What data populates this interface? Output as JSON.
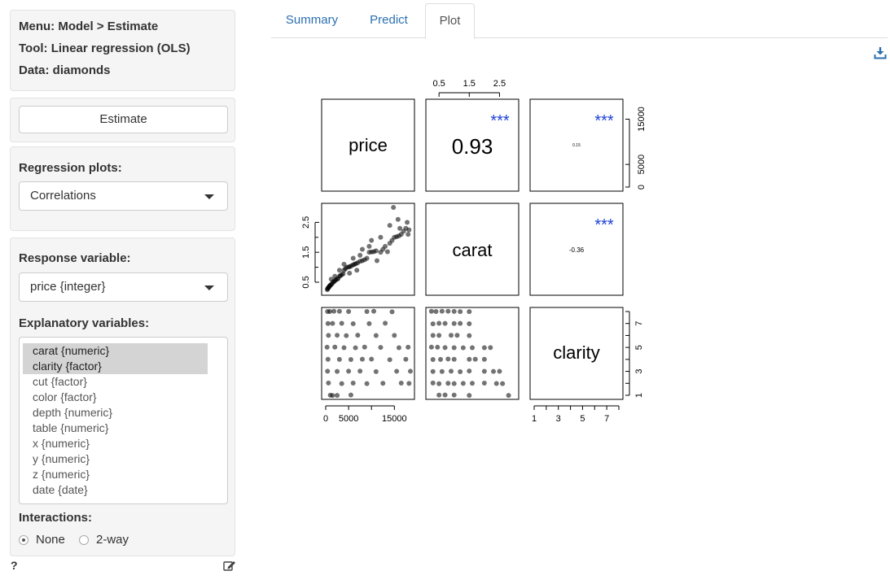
{
  "info": {
    "menu": "Menu: Model > Estimate",
    "tool": "Tool: Linear regression (OLS)",
    "data": "Data: diamonds"
  },
  "estimate_button": "Estimate",
  "regression_plots": {
    "label": "Regression plots:",
    "value": "Correlations"
  },
  "response_variable": {
    "label": "Response variable:",
    "value": "price {integer}"
  },
  "explanatory_variables": {
    "label": "Explanatory variables:",
    "options": [
      {
        "label": "carat {numeric}",
        "selected": true
      },
      {
        "label": "clarity {factor}",
        "selected": true
      },
      {
        "label": "cut {factor}",
        "selected": false
      },
      {
        "label": "color {factor}",
        "selected": false
      },
      {
        "label": "depth {numeric}",
        "selected": false
      },
      {
        "label": "table {numeric}",
        "selected": false
      },
      {
        "label": "x {numeric}",
        "selected": false
      },
      {
        "label": "y {numeric}",
        "selected": false
      },
      {
        "label": "z {numeric}",
        "selected": false
      },
      {
        "label": "date {date}",
        "selected": false
      }
    ]
  },
  "interactions": {
    "label": "Interactions:",
    "options": [
      {
        "label": "None",
        "checked": true
      },
      {
        "label": "2-way",
        "checked": false
      }
    ]
  },
  "footer": {
    "help": "?"
  },
  "tabs": [
    {
      "label": "Summary",
      "active": false
    },
    {
      "label": "Predict",
      "active": false
    },
    {
      "label": "Plot",
      "active": true
    }
  ],
  "chart_data": {
    "type": "scatter",
    "title": "",
    "variables": [
      "price",
      "carat",
      "clarity"
    ],
    "correlations": [
      {
        "pair": [
          "price",
          "carat"
        ],
        "r": "0.93",
        "stars": "***"
      },
      {
        "pair": [
          "price",
          "clarity"
        ],
        "r": "0.15",
        "stars": "***"
      },
      {
        "pair": [
          "carat",
          "clarity"
        ],
        "r": "-0.36",
        "stars": "***"
      }
    ],
    "axis_ticks": {
      "price": [
        "0",
        "5000",
        "15000"
      ],
      "carat": [
        "0.5",
        "1.5",
        "2.5"
      ],
      "clarity": [
        "1",
        "3",
        "5",
        "7"
      ]
    },
    "ranges": {
      "price": [
        0,
        18500
      ],
      "carat": [
        0.2,
        3.0
      ],
      "clarity": [
        1,
        8
      ]
    },
    "points": {
      "price_carat": [
        [
          350,
          0.25
        ],
        [
          420,
          0.28
        ],
        [
          500,
          0.3
        ],
        [
          600,
          0.32
        ],
        [
          700,
          0.34
        ],
        [
          800,
          0.36
        ],
        [
          900,
          0.38
        ],
        [
          1000,
          0.4
        ],
        [
          1200,
          0.42
        ],
        [
          1400,
          0.45
        ],
        [
          1600,
          0.5
        ],
        [
          1800,
          0.52
        ],
        [
          2000,
          0.55
        ],
        [
          2200,
          0.58
        ],
        [
          2500,
          0.6
        ],
        [
          2700,
          0.62
        ],
        [
          3000,
          0.7
        ],
        [
          3200,
          0.72
        ],
        [
          3500,
          0.75
        ],
        [
          3800,
          0.78
        ],
        [
          4000,
          0.9
        ],
        [
          4300,
          0.95
        ],
        [
          4600,
          1.0
        ],
        [
          5000,
          1.01
        ],
        [
          5300,
          1.02
        ],
        [
          5600,
          1.05
        ],
        [
          6000,
          1.08
        ],
        [
          6300,
          1.1
        ],
        [
          6600,
          1.12
        ],
        [
          7000,
          1.15
        ],
        [
          7500,
          1.2
        ],
        [
          8000,
          1.22
        ],
        [
          8500,
          1.25
        ],
        [
          9000,
          1.3
        ],
        [
          9500,
          1.5
        ],
        [
          10000,
          1.51
        ],
        [
          10500,
          1.52
        ],
        [
          11000,
          1.55
        ],
        [
          12000,
          1.5
        ],
        [
          12500,
          1.6
        ],
        [
          13000,
          1.7
        ],
        [
          13500,
          1.52
        ],
        [
          14000,
          1.8
        ],
        [
          14500,
          1.9
        ],
        [
          15000,
          2.0
        ],
        [
          15500,
          2.02
        ],
        [
          16000,
          2.05
        ],
        [
          16500,
          2.1
        ],
        [
          17000,
          2.2
        ],
        [
          17500,
          2.3
        ],
        [
          18000,
          2.1
        ],
        [
          17800,
          2.5
        ],
        [
          16200,
          2.3
        ],
        [
          14000,
          2.4
        ],
        [
          12000,
          2.0
        ],
        [
          10000,
          1.9
        ],
        [
          8000,
          1.6
        ],
        [
          6000,
          1.3
        ],
        [
          4000,
          1.1
        ],
        [
          7500,
          1.4
        ],
        [
          9500,
          1.7
        ],
        [
          15800,
          2.6
        ],
        [
          14800,
          3.0
        ],
        [
          18200,
          2.25
        ],
        [
          11200,
          1.22
        ],
        [
          6800,
          0.9
        ],
        [
          5200,
          0.8
        ],
        [
          3000,
          0.9
        ],
        [
          2000,
          0.7
        ],
        [
          1200,
          0.6
        ]
      ],
      "price_clarity": [
        [
          400,
          8
        ],
        [
          900,
          8
        ],
        [
          1800,
          8
        ],
        [
          3000,
          8
        ],
        [
          5000,
          8
        ],
        [
          9000,
          8
        ],
        [
          10500,
          8
        ],
        [
          14500,
          8
        ],
        [
          500,
          7
        ],
        [
          1500,
          7
        ],
        [
          3500,
          7
        ],
        [
          6000,
          7
        ],
        [
          9500,
          7
        ],
        [
          13000,
          7
        ],
        [
          600,
          6
        ],
        [
          2500,
          6
        ],
        [
          4500,
          6
        ],
        [
          7000,
          6
        ],
        [
          11000,
          6
        ],
        [
          15000,
          6
        ],
        [
          300,
          5
        ],
        [
          2000,
          5
        ],
        [
          4000,
          5
        ],
        [
          6500,
          5
        ],
        [
          8500,
          5
        ],
        [
          12000,
          5
        ],
        [
          16000,
          5
        ],
        [
          18000,
          5
        ],
        [
          500,
          4
        ],
        [
          3000,
          4
        ],
        [
          5500,
          4
        ],
        [
          8000,
          4
        ],
        [
          10000,
          4
        ],
        [
          14000,
          4
        ],
        [
          17500,
          4
        ],
        [
          400,
          3
        ],
        [
          2500,
          3
        ],
        [
          5000,
          3
        ],
        [
          7500,
          3
        ],
        [
          11000,
          3
        ],
        [
          15500,
          3
        ],
        [
          18500,
          3
        ],
        [
          600,
          2
        ],
        [
          3500,
          2
        ],
        [
          6000,
          2
        ],
        [
          9000,
          2
        ],
        [
          12500,
          2
        ],
        [
          16500,
          2
        ],
        [
          18200,
          2
        ],
        [
          1000,
          1
        ],
        [
          1500,
          1
        ],
        [
          2500,
          1
        ],
        [
          5500,
          1
        ]
      ],
      "carat_clarity": [
        [
          0.25,
          8
        ],
        [
          0.4,
          8
        ],
        [
          0.6,
          8
        ],
        [
          0.8,
          8
        ],
        [
          1.0,
          8
        ],
        [
          1.2,
          8
        ],
        [
          1.5,
          8
        ],
        [
          0.3,
          7
        ],
        [
          0.5,
          7
        ],
        [
          0.7,
          7
        ],
        [
          1.0,
          7
        ],
        [
          1.2,
          7
        ],
        [
          1.5,
          7
        ],
        [
          0.3,
          6
        ],
        [
          0.5,
          6
        ],
        [
          0.9,
          6
        ],
        [
          1.1,
          6
        ],
        [
          1.5,
          6
        ],
        [
          0.25,
          5
        ],
        [
          0.45,
          5
        ],
        [
          0.7,
          5
        ],
        [
          1.0,
          5
        ],
        [
          1.3,
          5
        ],
        [
          1.6,
          5
        ],
        [
          2.0,
          5
        ],
        [
          2.2,
          5
        ],
        [
          0.3,
          4
        ],
        [
          0.55,
          4
        ],
        [
          0.8,
          4
        ],
        [
          1.0,
          4
        ],
        [
          1.5,
          4
        ],
        [
          1.7,
          4
        ],
        [
          2.0,
          4
        ],
        [
          0.3,
          3
        ],
        [
          0.6,
          3
        ],
        [
          0.9,
          3
        ],
        [
          1.2,
          3
        ],
        [
          1.5,
          3
        ],
        [
          2.0,
          3
        ],
        [
          2.3,
          3
        ],
        [
          2.5,
          3
        ],
        [
          0.3,
          2
        ],
        [
          0.5,
          2
        ],
        [
          0.8,
          2
        ],
        [
          1.0,
          2
        ],
        [
          1.3,
          2
        ],
        [
          1.6,
          2
        ],
        [
          2.0,
          2
        ],
        [
          2.4,
          2
        ],
        [
          2.6,
          2
        ],
        [
          0.5,
          1
        ],
        [
          0.7,
          1
        ],
        [
          1.0,
          1
        ],
        [
          1.5,
          1
        ],
        [
          2.8,
          1
        ]
      ]
    }
  }
}
